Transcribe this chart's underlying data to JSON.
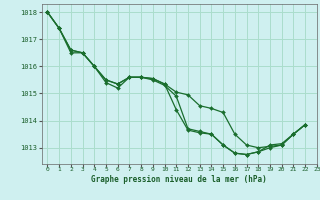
{
  "title": "Graphe pression niveau de la mer (hPa)",
  "bg_color": "#cff0f0",
  "grid_color": "#aaddcc",
  "line_color": "#1a6e2e",
  "marker_color": "#1a6e2e",
  "xlim": [
    -0.5,
    23
  ],
  "ylim": [
    1012.4,
    1018.3
  ],
  "yticks": [
    1013,
    1014,
    1015,
    1016,
    1017,
    1018
  ],
  "xticks": [
    0,
    1,
    2,
    3,
    4,
    5,
    6,
    7,
    8,
    9,
    10,
    11,
    12,
    13,
    14,
    15,
    16,
    17,
    18,
    19,
    20,
    21,
    22,
    23
  ],
  "series": [
    {
      "x": [
        0,
        1,
        2,
        3,
        4,
        5,
        6,
        7,
        8,
        9,
        10,
        11,
        12,
        13,
        14,
        15,
        16,
        17,
        18,
        19,
        20,
        21,
        22
      ],
      "y": [
        1018.0,
        1017.4,
        1016.6,
        1016.5,
        1016.0,
        1015.4,
        1015.2,
        1015.6,
        1015.6,
        1015.5,
        1015.3,
        1014.9,
        1013.7,
        1013.6,
        1013.5,
        1013.1,
        1012.8,
        1012.75,
        1012.85,
        1013.1,
        1013.15,
        1013.5,
        1013.85
      ]
    },
    {
      "x": [
        0,
        1,
        2,
        3,
        4,
        5,
        6,
        7,
        8,
        9,
        10,
        11,
        12,
        13,
        14,
        15,
        16,
        17,
        18,
        19,
        20,
        21,
        22
      ],
      "y": [
        1018.0,
        1017.4,
        1016.6,
        1016.5,
        1016.0,
        1015.5,
        1015.35,
        1015.6,
        1015.6,
        1015.55,
        1015.35,
        1015.05,
        1014.95,
        1014.55,
        1014.45,
        1014.3,
        1013.5,
        1013.1,
        1013.0,
        1013.05,
        1013.1,
        1013.5,
        1013.85
      ]
    },
    {
      "x": [
        0,
        1,
        2,
        3,
        4,
        5,
        6,
        7,
        8,
        9,
        10,
        11,
        12,
        13,
        14,
        15,
        16,
        17,
        18,
        19,
        20,
        21,
        22
      ],
      "y": [
        1018.0,
        1017.4,
        1016.5,
        1016.5,
        1016.0,
        1015.5,
        1015.35,
        1015.6,
        1015.6,
        1015.55,
        1015.35,
        1014.4,
        1013.65,
        1013.55,
        1013.5,
        1013.1,
        1012.8,
        1012.75,
        1012.85,
        1013.0,
        1013.1,
        1013.5,
        1013.85
      ]
    }
  ]
}
